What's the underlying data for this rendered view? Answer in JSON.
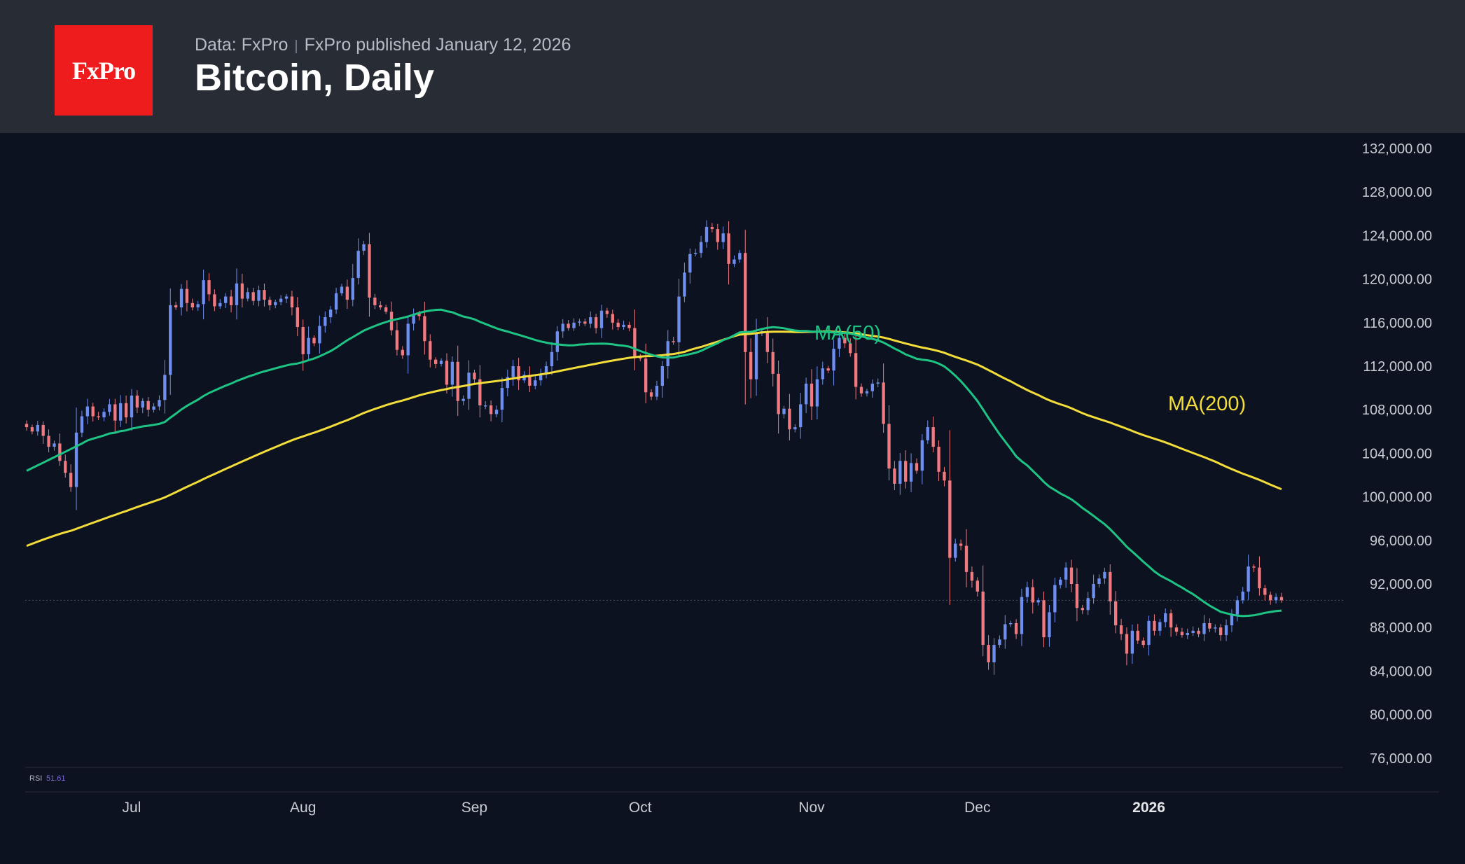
{
  "header": {
    "logo_text": "FxPro",
    "source": "Data: FxPro",
    "separator": "|",
    "published": "FxPro published January 12, 2026",
    "title": "Bitcoin, Daily"
  },
  "colors": {
    "background": "#0d1220",
    "header_bg": "#282c35",
    "brand_red": "#ee1c1c",
    "candle_up": "#6e8ff0",
    "candle_down": "#f07a80",
    "ma50": "#1ec484",
    "ma200": "#f2dd3a",
    "rsi": "#7a67d8"
  },
  "indicator": {
    "name": "RSI",
    "value": "51.61"
  },
  "chart_data": {
    "type": "candlestick",
    "title": "Bitcoin, Daily",
    "ylim": [
      74000,
      133500
    ],
    "y_ticks": [
      "132,000.00",
      "128,000.00",
      "124,000.00",
      "120,000.00",
      "116,000.00",
      "112,000.00",
      "108,000.00",
      "104,000.00",
      "100,000.00",
      "96,000.00",
      "92,000.00",
      "88,000.00",
      "84,000.00",
      "80,000.00",
      "76,000.00"
    ],
    "x_ticks": [
      {
        "label": "Jul",
        "date": "2025-07-01",
        "bold": false
      },
      {
        "label": "Aug",
        "date": "2025-08-01",
        "bold": false
      },
      {
        "label": "Sep",
        "date": "2025-09-01",
        "bold": false
      },
      {
        "label": "Oct",
        "date": "2025-10-01",
        "bold": false
      },
      {
        "label": "Nov",
        "date": "2025-11-01",
        "bold": false
      },
      {
        "label": "Dec",
        "date": "2025-12-01",
        "bold": false
      },
      {
        "label": "2026",
        "date": "2026-01-01",
        "bold": true
      }
    ],
    "start_date": "2025-06-12",
    "current_price_line": 90500,
    "close": [
      106400,
      106000,
      106600,
      105600,
      104600,
      104900,
      103300,
      102200,
      100900,
      105900,
      107400,
      108300,
      107400,
      107300,
      107800,
      108500,
      107000,
      108600,
      107300,
      109300,
      108200,
      108800,
      108000,
      108300,
      108900,
      111200,
      117600,
      117400,
      119100,
      117800,
      117400,
      117700,
      119900,
      118600,
      117500,
      117800,
      118400,
      117600,
      119600,
      118200,
      118800,
      118000,
      119000,
      118100,
      117600,
      117900,
      118200,
      118400,
      117400,
      115600,
      113100,
      114600,
      114100,
      115700,
      116500,
      117200,
      118700,
      119300,
      118100,
      120100,
      122600,
      123200,
      118300,
      117600,
      117400,
      117000,
      115300,
      113500,
      113000,
      115900,
      116800,
      116600,
      114300,
      112600,
      112200,
      112500,
      110300,
      112400,
      108800,
      109000,
      111400,
      110800,
      108400,
      108400,
      107600,
      108000,
      110000,
      111000,
      112000,
      110700,
      111200,
      110200,
      110700,
      111300,
      112000,
      113300,
      115200,
      115900,
      115500,
      116000,
      116100,
      115900,
      116500,
      115500,
      117100,
      116800,
      116000,
      115600,
      115800,
      115500,
      112900,
      112700,
      109600,
      109200,
      110200,
      112000,
      114300,
      114200,
      118400,
      120600,
      122300,
      122400,
      123400,
      124800,
      124600,
      123400,
      124200,
      121400,
      121800,
      122400,
      113300,
      110800,
      115000,
      115200,
      113300,
      111300,
      107600,
      108100,
      106200,
      106400,
      108500,
      110400,
      108300,
      110800,
      111800,
      111600,
      113600,
      114600,
      114100,
      113200,
      110100,
      109500,
      109700,
      110400,
      110500,
      106700,
      102600,
      101200,
      103300,
      101400,
      103100,
      102400,
      105200,
      106400,
      104600,
      102300,
      101500,
      94400,
      95700,
      95500,
      93100,
      92300,
      91300,
      86400,
      84800,
      86400,
      86900,
      88300,
      88400,
      87400,
      90800,
      91700,
      90300,
      90500,
      87100,
      89400,
      91900,
      92400,
      93500,
      92000,
      89800,
      89600,
      90700,
      92000,
      92500,
      93100,
      90400,
      88200,
      87400,
      85600,
      87700,
      86800,
      86400,
      88600,
      87700,
      88500,
      89300,
      88000,
      87600,
      87300,
      87500,
      87700,
      87400,
      88400,
      87900,
      88000,
      87300,
      88200,
      89200,
      90500,
      91300,
      93600,
      93500,
      91600,
      91000,
      90500,
      90800,
      90500
    ]
  }
}
